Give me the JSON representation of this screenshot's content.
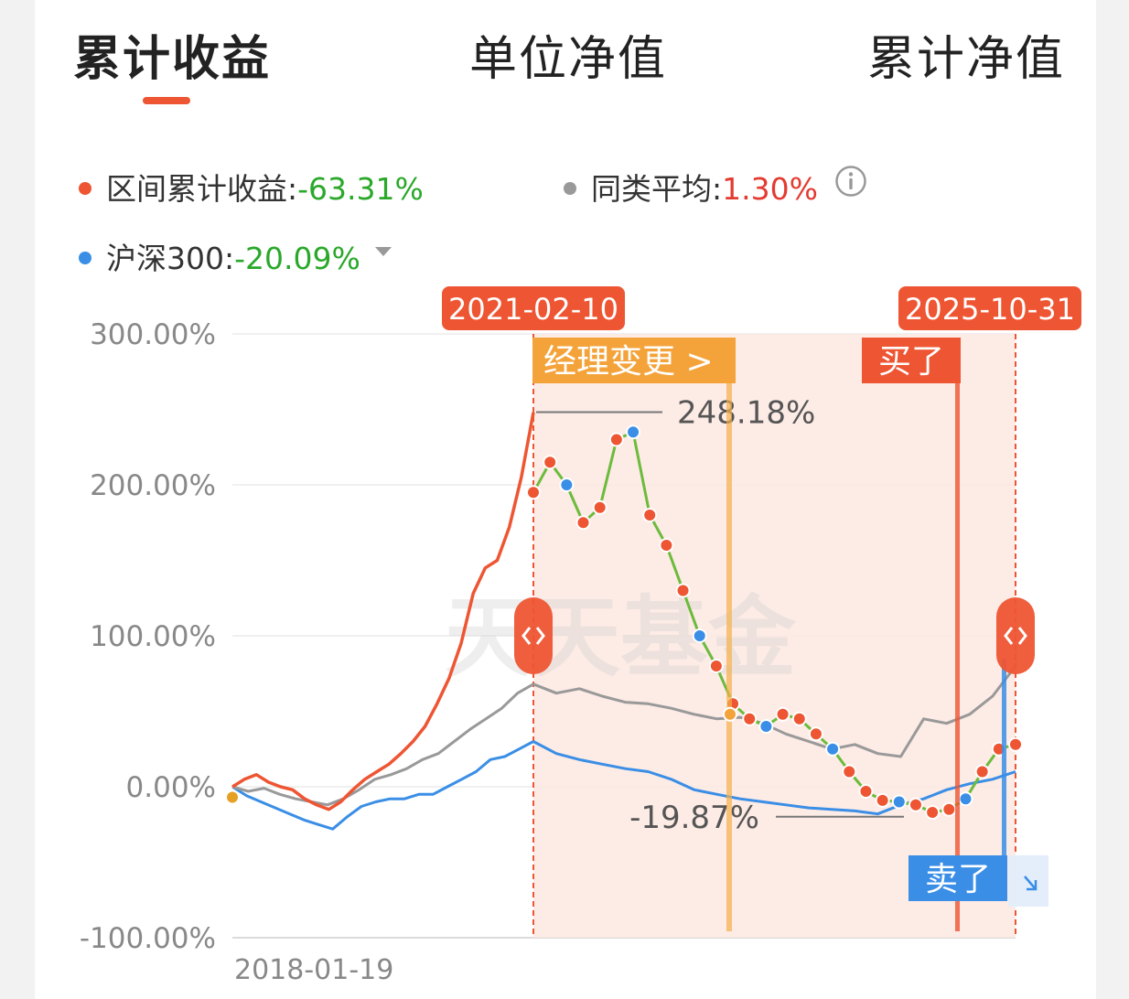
{
  "tabs": [
    {
      "label": "累计收益",
      "active": true
    },
    {
      "label": "单位净值",
      "active": false
    },
    {
      "label": "累计净值",
      "active": false
    }
  ],
  "legend": {
    "fund": {
      "label": "区间累计收益:",
      "value": "-63.31%",
      "color": "#ee5533",
      "value_color": "#2aa82a"
    },
    "peer": {
      "label": "同类平均:",
      "value": "1.30%",
      "color": "#999999",
      "value_color": "#e33b30"
    },
    "index": {
      "label": "沪深300:",
      "value": "-20.09%",
      "color": "#3a8ee6",
      "value_color": "#2aa82a"
    },
    "info_icon": "info-circle-icon",
    "dropdown_icon": "triangle-down-icon"
  },
  "chart_data": {
    "type": "line",
    "x_start_label": "2018-01-19",
    "yticks": [
      "300.00%",
      "200.00%",
      "100.00%",
      "0.00%",
      "-100.00%"
    ],
    "ylim": [
      -100,
      300
    ],
    "range_start": "2021-02-10",
    "range_end": "2025-10-31",
    "watermark": "天天基金",
    "series": [
      {
        "name": "区间累计收益",
        "color": "#ee5533",
        "values": [
          0,
          5,
          8,
          3,
          0,
          -2,
          -8,
          -12,
          -15,
          -10,
          -2,
          5,
          10,
          15,
          22,
          30,
          40,
          55,
          72,
          95,
          128,
          145,
          150,
          172,
          205,
          248
        ]
      },
      {
        "name": "同类平均",
        "color": "#999999",
        "values": [
          0,
          -3,
          -1,
          -5,
          -8,
          -10,
          -12,
          -8,
          -2,
          5,
          8,
          12,
          18,
          22,
          30,
          38,
          45,
          52,
          62,
          68
        ]
      },
      {
        "name": "沪深300",
        "color": "#3a8ee6",
        "values": [
          0,
          -6,
          -10,
          -14,
          -18,
          -22,
          -25,
          -28,
          -20,
          -13,
          -10,
          -8,
          -8,
          -5,
          -5,
          0,
          5,
          10,
          18,
          20,
          25,
          30
        ]
      }
    ],
    "range_series": {
      "fund": [
        195,
        215,
        200,
        175,
        185,
        230,
        235,
        180,
        160,
        130,
        100,
        80,
        55,
        45,
        40,
        48,
        45,
        35,
        25,
        10,
        -3,
        -9,
        -10,
        -12,
        -17,
        -15,
        -8,
        10,
        25,
        28
      ],
      "peer": [
        68,
        62,
        65,
        60,
        56,
        55,
        52,
        48,
        45,
        46,
        42,
        35,
        30,
        25,
        28,
        22,
        20,
        45,
        42,
        48,
        60,
        80
      ],
      "index": [
        30,
        22,
        18,
        15,
        12,
        10,
        5,
        -2,
        -5,
        -8,
        -10,
        -12,
        -14,
        -15,
        -16,
        -18,
        -12,
        -8,
        -2,
        2,
        5,
        10
      ]
    },
    "annotations": [
      {
        "label": "经理变更 >",
        "date_fraction": 0.41
      },
      {
        "label": "买了",
        "date_fraction": 0.88
      },
      {
        "label": "卖了",
        "date_fraction": 0.985
      }
    ],
    "extremes": {
      "max_label": "248.18%",
      "max_value": 248.18,
      "min_label": "-19.87%",
      "min_value": -19.87
    }
  }
}
